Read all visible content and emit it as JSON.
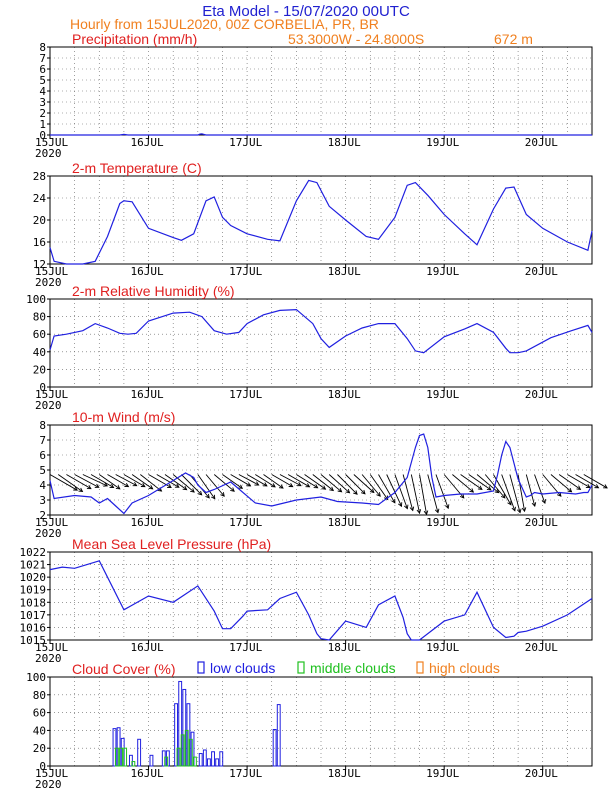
{
  "header": {
    "title": "Eta Model - 15/07/2020 00UTC",
    "subtitle": "Hourly from 15JUL2020, 00Z  CORBELIA, PR, BR",
    "location": "53.3000W - 24.8000S",
    "elevation": "672  m"
  },
  "colors": {
    "title": "#2020d0",
    "subtitle": "#f08020",
    "panel_title": "#e02020",
    "series": "#2020e0",
    "low_clouds": "#2020e0",
    "middle_clouds": "#20c020",
    "high_clouds": "#f08020",
    "grid": "#606060"
  },
  "x_axis": {
    "ticks": [
      {
        "x": 0,
        "label": "15JUL",
        "year": "2020"
      },
      {
        "x": 24,
        "label": "16JUL"
      },
      {
        "x": 48,
        "label": "17JUL"
      },
      {
        "x": 72,
        "label": "18JUL"
      },
      {
        "x": 96,
        "label": "19JUL"
      },
      {
        "x": 120,
        "label": "20JUL"
      }
    ],
    "range_hours": [
      0,
      132
    ]
  },
  "chart_data": [
    {
      "type": "line",
      "title": "Precipitation (mm/h)",
      "ylim": [
        0,
        8
      ],
      "yticks": [
        0,
        1,
        2,
        3,
        4,
        5,
        6,
        7,
        8
      ],
      "x": [
        0,
        12,
        17,
        18,
        19,
        24,
        36,
        36.5,
        37,
        37.5,
        38,
        48,
        72,
        96,
        120,
        132
      ],
      "y": [
        0,
        0,
        0,
        0.05,
        0,
        0,
        0,
        0.08,
        0.1,
        0.05,
        0,
        0,
        0,
        0,
        0,
        0
      ]
    },
    {
      "type": "line",
      "title": "2-m Temperature (C)",
      "ylim": [
        12,
        28
      ],
      "yticks": [
        12,
        16,
        20,
        24,
        28
      ],
      "x": [
        0,
        1,
        4,
        8,
        11,
        14,
        17,
        18,
        20,
        24,
        30,
        32,
        35,
        38,
        40,
        42,
        44,
        48,
        53,
        56,
        60,
        63,
        65,
        68,
        72,
        77,
        80,
        84,
        87,
        89,
        92,
        96,
        101,
        104,
        108,
        111,
        113,
        116,
        120,
        126,
        131,
        132
      ],
      "y": [
        15,
        12.5,
        11.8,
        11.8,
        12.5,
        17,
        23,
        23.5,
        23.3,
        18.5,
        16.8,
        16.3,
        17.5,
        23.5,
        24.2,
        20.5,
        19,
        17.5,
        16.5,
        16.2,
        23.5,
        27.2,
        26.8,
        22.5,
        20,
        17,
        16.5,
        20.5,
        26.3,
        26.8,
        24.5,
        21,
        17.5,
        15.5,
        22,
        25.8,
        26,
        21,
        18.5,
        16,
        14.5,
        18
      ]
    },
    {
      "type": "line",
      "title": "2-m Relative Humidity (%)",
      "ylim": [
        0,
        100
      ],
      "yticks": [
        0,
        20,
        40,
        60,
        80,
        100
      ],
      "x": [
        0,
        1,
        4,
        8,
        11,
        14,
        17,
        19,
        21,
        24,
        30,
        34,
        37,
        40,
        43,
        46,
        48,
        52,
        56,
        60,
        64,
        66,
        68,
        72,
        76,
        80,
        84,
        87,
        89,
        91,
        96,
        101,
        104,
        108,
        111,
        112,
        114,
        116,
        122,
        127,
        131,
        132
      ],
      "y": [
        42,
        58,
        60,
        64,
        72,
        67,
        61,
        60,
        61,
        75,
        84,
        85,
        80,
        64,
        60,
        62,
        72,
        82,
        87,
        88,
        72,
        55,
        45,
        58,
        67,
        72,
        72,
        55,
        41,
        39,
        57,
        66,
        72,
        62,
        44,
        39,
        39,
        41,
        56,
        64,
        70,
        62
      ]
    },
    {
      "type": "line",
      "title": "10-m Wind (m/s)",
      "ylim": [
        2,
        8
      ],
      "yticks": [
        2,
        3,
        4,
        5,
        6,
        7,
        8
      ],
      "x": [
        0,
        1,
        6,
        10,
        12,
        14,
        16,
        18,
        20,
        24,
        30,
        33,
        35,
        36,
        38,
        40,
        44,
        50,
        54,
        60,
        66,
        70,
        76,
        80,
        84,
        87,
        89,
        90,
        91,
        92,
        93,
        94,
        96,
        100,
        104,
        108,
        109,
        110,
        111,
        112,
        114,
        116,
        117,
        118,
        120,
        124,
        128,
        130,
        131,
        132
      ],
      "y": [
        4.3,
        3.1,
        3.3,
        3.2,
        2.8,
        3.1,
        2.6,
        2.1,
        2.8,
        3.3,
        4.3,
        4.8,
        4.5,
        4.0,
        3.5,
        3.7,
        4.2,
        2.8,
        2.6,
        3.0,
        3.2,
        2.9,
        2.8,
        2.7,
        3.5,
        4.5,
        6.5,
        7.3,
        7.4,
        6.5,
        4.5,
        3.2,
        3.3,
        3.4,
        3.4,
        3.6,
        4.7,
        6.0,
        6.9,
        6.5,
        4.4,
        3.2,
        3.3,
        3.5,
        3.4,
        3.5,
        3.4,
        3.5,
        3.5,
        4.0
      ]
    },
    {
      "type": "line",
      "title": "Mean Sea Level Pressure (hPa)",
      "ylim": [
        1015,
        1022
      ],
      "yticks": [
        1015,
        1016,
        1017,
        1018,
        1019,
        1020,
        1021,
        1022
      ],
      "x": [
        0,
        3,
        6,
        9,
        12,
        18,
        24,
        30,
        36,
        40,
        42,
        44,
        47,
        48,
        53,
        56,
        60,
        63,
        65,
        66,
        68,
        72,
        77,
        80,
        84,
        86,
        87,
        88,
        90,
        96,
        101,
        104,
        108,
        111,
        113,
        114,
        116,
        120,
        126,
        132
      ],
      "y": [
        1020.6,
        1020.8,
        1020.7,
        1021.0,
        1021.3,
        1017.4,
        1018.5,
        1018.0,
        1019.3,
        1017.3,
        1015.9,
        1015.9,
        1016.9,
        1017.3,
        1017.4,
        1018.3,
        1018.8,
        1017.0,
        1015.5,
        1015.1,
        1015.0,
        1016.5,
        1016.0,
        1017.8,
        1018.5,
        1016.8,
        1015.5,
        1015.0,
        1015.0,
        1016.5,
        1017.0,
        1018.8,
        1016.0,
        1015.2,
        1015.3,
        1015.6,
        1015.7,
        1016.1,
        1017.0,
        1018.3
      ]
    },
    {
      "type": "bar",
      "title": "Cloud Cover (%)",
      "ylim": [
        0,
        100
      ],
      "yticks": [
        0,
        20,
        40,
        60,
        80,
        100
      ],
      "legend": [
        "low clouds",
        "middle clouds",
        "high clouds"
      ],
      "series": [
        {
          "name": "low clouds",
          "x": [
            16,
            17,
            18,
            20,
            22,
            25,
            28,
            29,
            31,
            32,
            33,
            34,
            35,
            37,
            38,
            39,
            40,
            41,
            42,
            55,
            56
          ],
          "values": [
            42,
            43,
            31,
            12,
            30,
            12,
            17,
            17,
            70,
            95,
            86,
            70,
            38,
            14,
            18,
            8,
            16,
            8,
            16,
            41,
            69
          ]
        },
        {
          "name": "middle clouds",
          "x": [
            16,
            17,
            18,
            20,
            28,
            31,
            32,
            33,
            34,
            35
          ],
          "values": [
            20,
            20,
            20,
            5,
            10,
            20,
            35,
            40,
            30,
            10
          ]
        },
        {
          "name": "high clouds",
          "x": [],
          "values": []
        }
      ]
    }
  ],
  "wind_arrows": {
    "y_level": 4.7,
    "hours": [
      0,
      2,
      4,
      6,
      8,
      10,
      12,
      14,
      16,
      18,
      20,
      22,
      24,
      26,
      28,
      30,
      32,
      34,
      36,
      38,
      40,
      42,
      44,
      46,
      48,
      50,
      52,
      54,
      56,
      58,
      60,
      62,
      64,
      66,
      68,
      70,
      72,
      74,
      76,
      78,
      80,
      82,
      84,
      86,
      88,
      90,
      92,
      94,
      96,
      98,
      100,
      102,
      104,
      106,
      108,
      110,
      112,
      114,
      116,
      118,
      120,
      122,
      124,
      126,
      128,
      130
    ],
    "direction_deg": [
      300,
      305,
      300,
      298,
      295,
      300,
      305,
      300,
      298,
      300,
      305,
      308,
      300,
      300,
      305,
      310,
      315,
      320,
      325,
      320,
      310,
      305,
      300,
      298,
      300,
      302,
      305,
      300,
      298,
      300,
      302,
      305,
      308,
      310,
      312,
      315,
      315,
      312,
      320,
      325,
      330,
      335,
      340,
      345,
      348,
      350,
      345,
      340,
      320,
      310,
      305,
      305,
      310,
      320,
      330,
      340,
      345,
      350,
      345,
      340,
      320,
      310,
      305,
      300,
      300,
      300
    ],
    "speed": [
      5.2,
      4.8,
      4.5,
      4.3,
      4.2,
      4.0,
      3.8,
      3.6,
      3.5,
      3.6,
      3.8,
      4.2,
      4.0,
      3.9,
      4.1,
      4.3,
      4.6,
      5.0,
      4.8,
      4.5,
      4.0,
      3.6,
      3.3,
      3.2,
      3.3,
      3.4,
      3.5,
      3.6,
      3.5,
      3.7,
      3.8,
      3.9,
      4.0,
      4.2,
      4.3,
      4.4,
      4.3,
      4.2,
      4.5,
      5.0,
      5.5,
      6.0,
      6.3,
      6.5,
      7.0,
      7.2,
      7.0,
      6.2,
      5.0,
      4.3,
      4.0,
      4.2,
      4.5,
      5.0,
      6.0,
      6.8,
      7.0,
      6.5,
      5.5,
      5.0,
      4.5,
      4.2,
      4.0,
      4.0,
      4.1,
      4.2
    ]
  }
}
